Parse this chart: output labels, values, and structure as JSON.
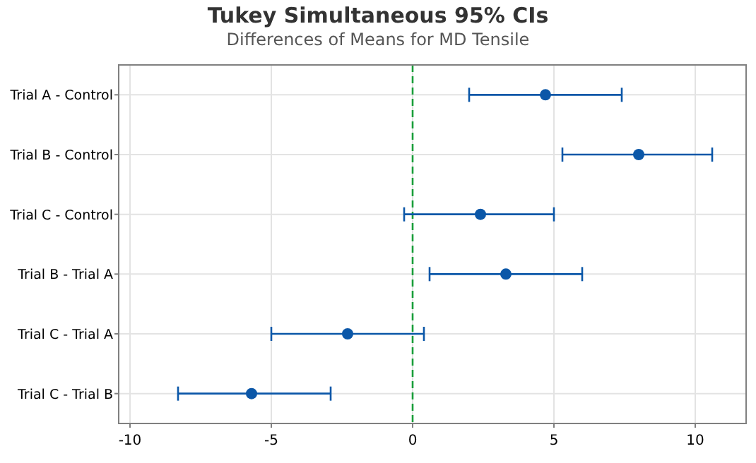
{
  "chart_data": {
    "type": "scatter",
    "title": "Tukey Simultaneous 95% CIs",
    "subtitle": "Differences of Means for MD Tensile",
    "orientation": "horizontal",
    "categories": [
      "Trial A - Control",
      "Trial B - Control",
      "Trial C - Control",
      "Trial B - Trial A",
      "Trial C - Trial A",
      "Trial C - Trial B"
    ],
    "series": [
      {
        "color": "#0b57a8",
        "values": [
          4.7,
          8.0,
          2.4,
          3.3,
          -2.3,
          -5.7
        ],
        "errors": [
          [
            2.0,
            7.4
          ],
          [
            5.3,
            10.6
          ],
          [
            -0.3,
            5.0
          ],
          [
            0.6,
            6.0
          ],
          [
            -5.0,
            0.4
          ],
          [
            -8.3,
            -2.9
          ]
        ]
      }
    ],
    "xlim": [
      -10.4,
      11.8
    ],
    "xticks": [
      -10,
      -5,
      0,
      5,
      10
    ],
    "grid": true,
    "marker": "circle",
    "ref_lines": [
      {
        "axis": "x",
        "value": 0,
        "color": "#1a9e3a",
        "line_style": "dashed"
      }
    ]
  }
}
